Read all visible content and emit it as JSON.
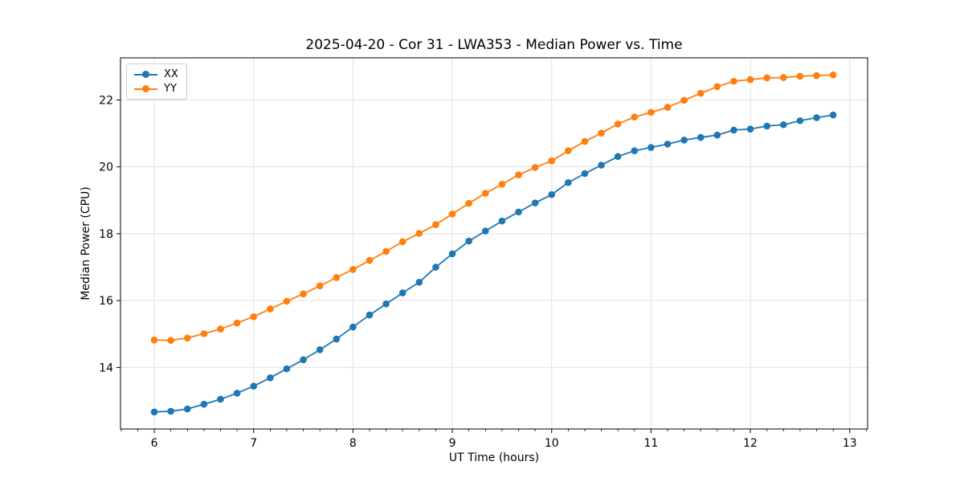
{
  "chart_data": {
    "type": "line",
    "title": "2025-04-20 - Cor 31 - LWA353 - Median Power vs. Time",
    "xlabel": "UT Time (hours)",
    "ylabel": "Median Power (CPU)",
    "xlim": [
      5.66,
      13.18
    ],
    "ylim": [
      12.16,
      23.26
    ],
    "xticks": [
      6,
      7,
      8,
      9,
      10,
      11,
      12,
      13
    ],
    "yticks": [
      14,
      16,
      18,
      20,
      22
    ],
    "x_minor_step": 0.16667,
    "grid": true,
    "grid_color": "#e3e3e3",
    "legend_position": "upper left",
    "x": [
      6.0,
      6.1667,
      6.3333,
      6.5,
      6.6667,
      6.8333,
      7.0,
      7.1667,
      7.3333,
      7.5,
      7.6667,
      7.8333,
      8.0,
      8.1667,
      8.3333,
      8.5,
      8.6667,
      8.8333,
      9.0,
      9.1667,
      9.3333,
      9.5,
      9.6667,
      9.8333,
      10.0,
      10.1667,
      10.3333,
      10.5,
      10.6667,
      10.8333,
      11.0,
      11.1667,
      11.3333,
      11.5,
      11.6667,
      11.8333,
      12.0,
      12.1667,
      12.3333,
      12.5,
      12.6667,
      12.8333
    ],
    "series": [
      {
        "name": "XX",
        "color": "#1f77b4",
        "values": [
          12.67,
          12.69,
          12.76,
          12.9,
          13.05,
          13.23,
          13.44,
          13.69,
          13.96,
          14.23,
          14.53,
          14.85,
          15.21,
          15.57,
          15.9,
          16.23,
          16.55,
          17.0,
          17.4,
          17.78,
          18.08,
          18.38,
          18.65,
          18.92,
          19.17,
          19.53,
          19.8,
          20.05,
          20.31,
          20.48,
          20.58,
          20.68,
          20.8,
          20.88,
          20.95,
          21.1,
          21.13,
          21.22,
          21.26,
          21.38,
          21.47,
          21.55
        ]
      },
      {
        "name": "YY",
        "color": "#ff7f0e",
        "values": [
          14.82,
          14.81,
          14.88,
          15.01,
          15.15,
          15.33,
          15.52,
          15.75,
          15.98,
          16.2,
          16.44,
          16.69,
          16.93,
          17.2,
          17.47,
          17.76,
          18.01,
          18.27,
          18.59,
          18.91,
          19.21,
          19.48,
          19.76,
          19.98,
          20.18,
          20.48,
          20.76,
          21.01,
          21.28,
          21.49,
          21.63,
          21.78,
          21.99,
          22.2,
          22.4,
          22.56,
          22.61,
          22.66,
          22.67,
          22.71,
          22.73,
          22.75
        ]
      }
    ]
  }
}
